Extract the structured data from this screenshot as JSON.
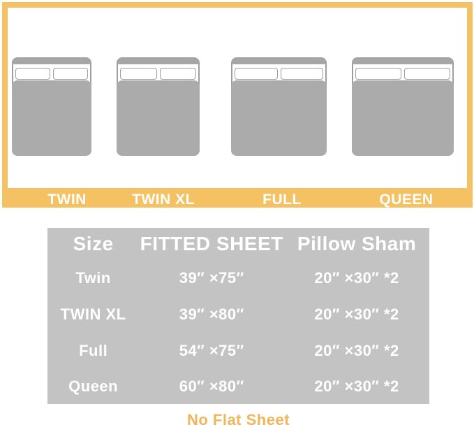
{
  "colors": {
    "accent_amber": "#F5C263",
    "note_amber": "#EFB65A",
    "bed_blanket_gray": "#ABABAB",
    "bed_headboard_gray": "#A6A6A6",
    "bed_outline_gray": "#9E9E9E",
    "table_background_gray": "#C3C3C3",
    "text_white": "#FFFFFF"
  },
  "sizes": [
    {
      "label": "TWIN"
    },
    {
      "label": "TWIN XL"
    },
    {
      "label": "FULL"
    },
    {
      "label": "QUEEN"
    }
  ],
  "table": {
    "headers": [
      "Size",
      "FITTED SHEET",
      "Pillow Sham"
    ],
    "rows": [
      [
        "Twin",
        "39″ ×75″",
        "20″ ×30″ *2"
      ],
      [
        "TWIN XL",
        "39″ ×80″",
        "20″ ×30″ *2"
      ],
      [
        "Full",
        "54″ ×75″",
        "20″ ×30″ *2"
      ],
      [
        "Queen",
        "60″ ×80″",
        "20″ ×30″ *2"
      ]
    ]
  },
  "note": {
    "text": "No Flat Sheet"
  }
}
